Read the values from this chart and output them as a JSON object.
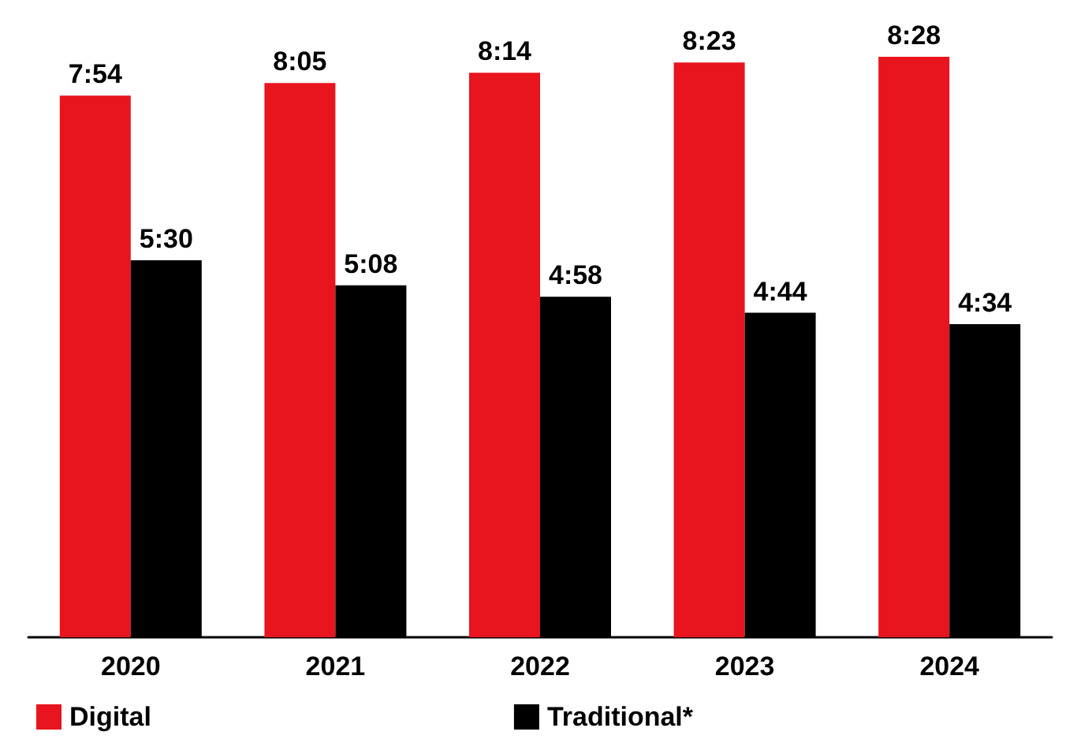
{
  "chart_data": {
    "type": "bar",
    "categories": [
      "2020",
      "2021",
      "2022",
      "2023",
      "2024"
    ],
    "series": [
      {
        "name": "Digital",
        "color": "#e8141e",
        "values": [
          7.9,
          8.0833,
          8.2333,
          8.3833,
          8.4667
        ],
        "value_labels": [
          "7:54",
          "8:05",
          "8:14",
          "8:23",
          "8:28"
        ]
      },
      {
        "name": "Traditional*",
        "color": "#000000",
        "values": [
          5.5,
          5.1333,
          4.9667,
          4.7333,
          4.5667
        ],
        "value_labels": [
          "5:30",
          "5:08",
          "4:58",
          "4:44",
          "4:34"
        ]
      }
    ],
    "legend": "bottom left",
    "grid": false
  }
}
